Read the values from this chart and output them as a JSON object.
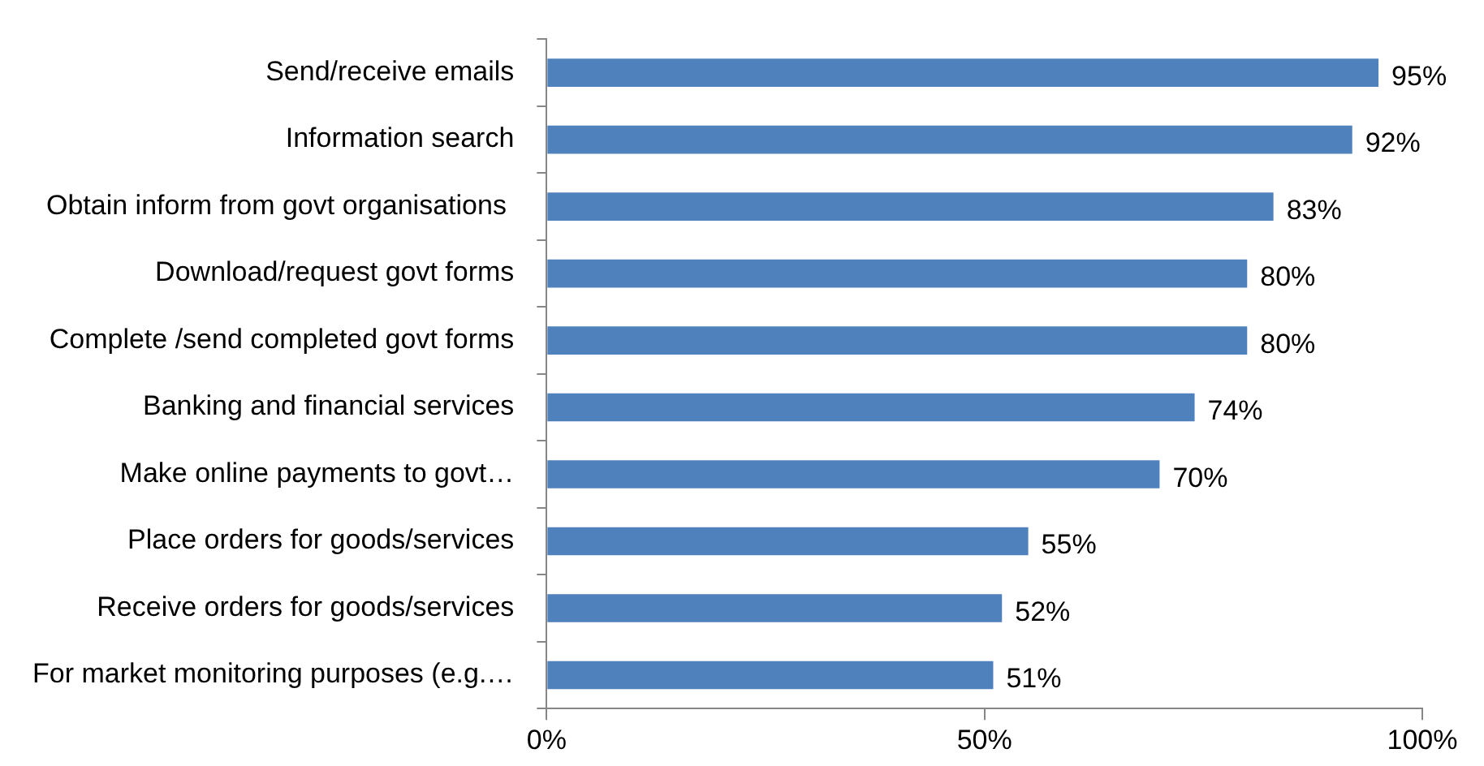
{
  "chart_data": {
    "type": "bar",
    "orientation": "horizontal",
    "categories": [
      "Send/receive emails",
      "Information search",
      "Obtain inform from govt organisations ",
      "Download/request govt forms",
      "Complete /send completed govt forms",
      "Banking and financial services",
      "Make online payments to govt…",
      "Place orders for goods/services",
      "Receive orders for goods/services",
      "For market monitoring purposes (e.g.…"
    ],
    "values": [
      95,
      92,
      83,
      80,
      80,
      74,
      70,
      55,
      52,
      51
    ],
    "value_labels": [
      "95%",
      "92%",
      "83%",
      "80%",
      "80%",
      "74%",
      "70%",
      "55%",
      "52%",
      "51%"
    ],
    "color": "#4f81bd",
    "xlim": [
      0,
      100
    ],
    "xticks": [
      {
        "value": 0,
        "label": "0%"
      },
      {
        "value": 50,
        "label": "50%"
      },
      {
        "value": 100,
        "label": "100%"
      }
    ],
    "grid": false,
    "legend": false
  }
}
